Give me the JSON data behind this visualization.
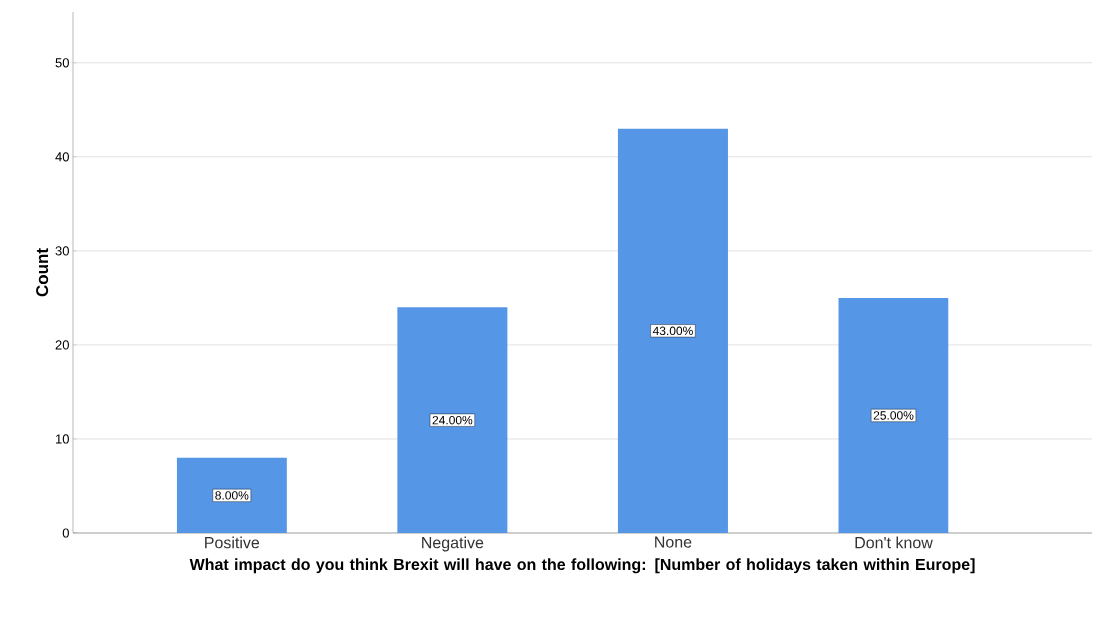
{
  "chart_data": {
    "type": "bar",
    "xlabel": "What impact do you think Brexit will have on the following: [Number of holidays taken within Europe]",
    "ylabel": "Count",
    "categories": [
      "Positive",
      "Negative",
      "None",
      "Don't know"
    ],
    "values": [
      8,
      24,
      43,
      25
    ],
    "color": "#5596e6",
    "value_labels": [
      "8.00%",
      "24.00%",
      "43.00%",
      "25.00%"
    ],
    "ylim": [
      0,
      55.4
    ],
    "yticks": [
      0,
      10,
      20,
      30,
      40,
      50
    ],
    "grid": "y"
  }
}
